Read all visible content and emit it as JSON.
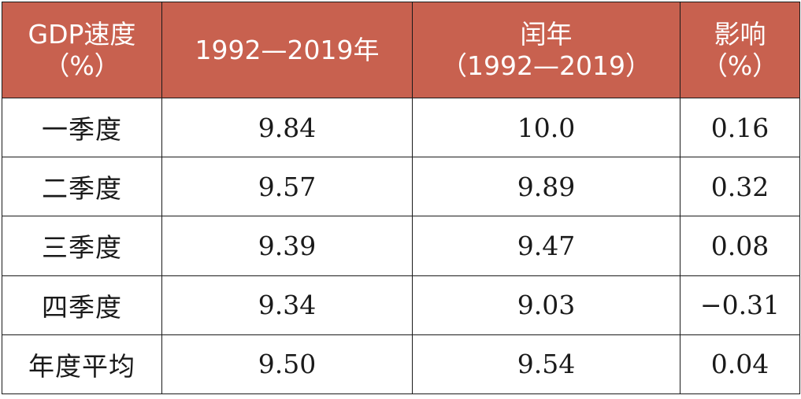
{
  "table": {
    "headers": [
      {
        "line1": "GDP速度",
        "line2": "（%）"
      },
      {
        "line1": "1992—2019年",
        "line2": ""
      },
      {
        "line1": "闰年",
        "line2": "（1992—2019）"
      },
      {
        "line1": "影响",
        "line2": "（%）"
      }
    ],
    "rows": [
      {
        "label": "一季度",
        "avg": "9.84",
        "leap": "10.0",
        "impact": "0.16"
      },
      {
        "label": "二季度",
        "avg": "9.57",
        "leap": "9.89",
        "impact": "0.32"
      },
      {
        "label": "三季度",
        "avg": "9.39",
        "leap": "9.47",
        "impact": "0.08"
      },
      {
        "label": "四季度",
        "avg": "9.34",
        "leap": "9.03",
        "impact": "−0.31"
      },
      {
        "label": "年度平均",
        "avg": "9.50",
        "leap": "9.54",
        "impact": "0.04"
      }
    ]
  },
  "colors": {
    "header_bg": "#c8614f",
    "header_text": "#ffffff",
    "border": "#1a1a1a",
    "body_text": "#1a1a1a"
  }
}
